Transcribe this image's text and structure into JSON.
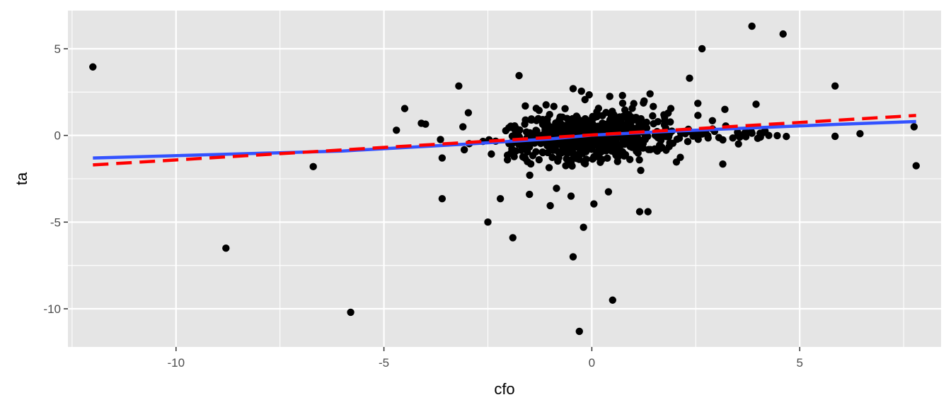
{
  "chart_data": {
    "type": "scatter",
    "xlabel": "cfo",
    "ylabel": "ta",
    "xlim": [
      -12.6,
      8.4
    ],
    "ylim": [
      -12.2,
      7.2
    ],
    "x_ticks": [
      -10,
      -5,
      0,
      5
    ],
    "x_tick_labels": [
      "-10",
      "-5",
      "0",
      "5"
    ],
    "y_ticks": [
      -10,
      -5,
      0,
      5
    ],
    "y_tick_labels": [
      "-10",
      "-5",
      "0",
      "5"
    ],
    "grid": true,
    "colors": {
      "panel": "#e5e5e5",
      "grid": "#ffffff",
      "points": "#000000",
      "fit_solid": "#3352ff",
      "fit_dashed": "#ff0000"
    },
    "fit_lines": [
      {
        "style": "solid",
        "color": "#3352ff",
        "x": [
          -12.0,
          -6.0,
          -3.0,
          -1.0,
          0.0,
          2.0,
          4.0,
          6.0,
          7.8
        ],
        "y": [
          -1.3,
          -0.9,
          -0.5,
          -0.2,
          0.02,
          0.25,
          0.45,
          0.65,
          0.8
        ]
      },
      {
        "style": "dashed",
        "color": "#ff0000",
        "x": [
          -12.0,
          7.8
        ],
        "y": [
          -1.7,
          1.15
        ]
      }
    ],
    "outliers": [
      {
        "x": -12.0,
        "y": 3.95
      },
      {
        "x": -8.8,
        "y": -6.5
      },
      {
        "x": -6.7,
        "y": -1.8
      },
      {
        "x": -5.8,
        "y": -10.2
      },
      {
        "x": -4.7,
        "y": 0.3
      },
      {
        "x": -4.5,
        "y": 1.55
      },
      {
        "x": -4.1,
        "y": 0.7
      },
      {
        "x": -4.0,
        "y": 0.65
      },
      {
        "x": -3.6,
        "y": -1.3
      },
      {
        "x": -3.6,
        "y": -3.65
      },
      {
        "x": -3.2,
        "y": 2.85
      },
      {
        "x": -3.1,
        "y": 0.5
      },
      {
        "x": -2.5,
        "y": -5.0
      },
      {
        "x": -2.2,
        "y": -3.65
      },
      {
        "x": -1.9,
        "y": -5.9
      },
      {
        "x": -1.75,
        "y": 3.45
      },
      {
        "x": -1.6,
        "y": 1.7
      },
      {
        "x": -1.5,
        "y": -3.4
      },
      {
        "x": -1.0,
        "y": -4.05
      },
      {
        "x": -0.85,
        "y": -3.05
      },
      {
        "x": -0.5,
        "y": -3.5
      },
      {
        "x": -0.45,
        "y": -7.0
      },
      {
        "x": -0.45,
        "y": 2.7
      },
      {
        "x": -0.25,
        "y": 2.55
      },
      {
        "x": -0.2,
        "y": -5.3
      },
      {
        "x": -0.3,
        "y": -11.3
      },
      {
        "x": 0.05,
        "y": -3.95
      },
      {
        "x": 0.4,
        "y": -3.25
      },
      {
        "x": 0.5,
        "y": -9.5
      },
      {
        "x": 1.15,
        "y": -4.4
      },
      {
        "x": 1.35,
        "y": -4.4
      },
      {
        "x": 1.4,
        "y": 2.4
      },
      {
        "x": 1.9,
        "y": 1.55
      },
      {
        "x": 2.35,
        "y": 3.3
      },
      {
        "x": 2.55,
        "y": 1.85
      },
      {
        "x": 2.65,
        "y": 5.0
      },
      {
        "x": 2.9,
        "y": 0.85
      },
      {
        "x": 3.15,
        "y": -1.65
      },
      {
        "x": 3.2,
        "y": 1.5
      },
      {
        "x": 3.85,
        "y": 6.3
      },
      {
        "x": 3.95,
        "y": 1.8
      },
      {
        "x": 4.6,
        "y": 5.85
      },
      {
        "x": 5.85,
        "y": 2.85
      },
      {
        "x": 5.85,
        "y": -0.05
      },
      {
        "x": 6.45,
        "y": 0.1
      },
      {
        "x": 7.75,
        "y": 0.5
      },
      {
        "x": 7.8,
        "y": -1.75
      }
    ],
    "clusters": [
      {
        "cx": 0.0,
        "cy": 0.0,
        "sx": 0.75,
        "sy": 0.6,
        "n": 460,
        "seed": 11
      },
      {
        "cx": 0.0,
        "cy": 0.0,
        "sx": 1.4,
        "sy": 0.9,
        "n": 120,
        "seed": 23
      },
      {
        "cx": -1.2,
        "cy": -0.6,
        "sx": 0.6,
        "sy": 0.6,
        "n": 50,
        "seed": 37
      },
      {
        "cx": 1.0,
        "cy": 0.5,
        "sx": 0.45,
        "sy": 0.55,
        "n": 40,
        "seed": 41
      }
    ],
    "tail_right": {
      "x_start": 1.5,
      "x_end": 4.7,
      "y": 0.1,
      "spread": 0.15,
      "n": 45,
      "seed": 53
    }
  }
}
